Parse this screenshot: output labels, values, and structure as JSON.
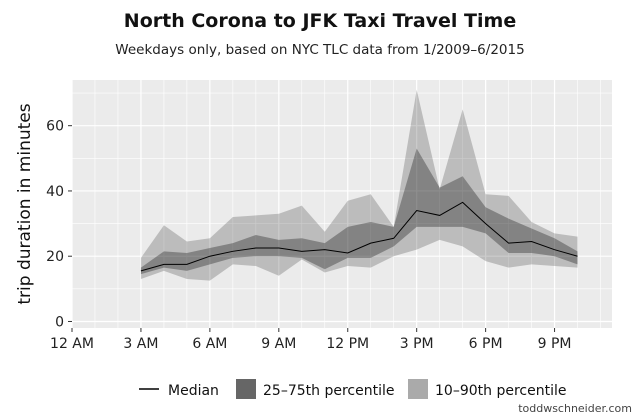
{
  "chart_data": {
    "type": "area",
    "title": "North Corona to JFK Taxi Travel Time",
    "subtitle": "Weekdays only, based on NYC TLC data from 1/2009–6/2015",
    "ylabel": "trip duration in minutes",
    "xlabel": "",
    "x_ticks": [
      {
        "hour": 0,
        "label": "12 AM"
      },
      {
        "hour": 3,
        "label": "3 AM"
      },
      {
        "hour": 6,
        "label": "6 AM"
      },
      {
        "hour": 9,
        "label": "9 AM"
      },
      {
        "hour": 12,
        "label": "12 PM"
      },
      {
        "hour": 15,
        "label": "3 PM"
      },
      {
        "hour": 18,
        "label": "6 PM"
      },
      {
        "hour": 21,
        "label": "9 PM"
      }
    ],
    "y_ticks": [
      0,
      20,
      40,
      60
    ],
    "xlim": [
      0,
      23.5
    ],
    "ylim": [
      -2,
      74
    ],
    "grid": true,
    "legend_position": "bottom",
    "x": [
      3,
      4,
      5,
      6,
      7,
      8,
      9,
      10,
      11,
      12,
      13,
      14,
      15,
      16,
      17,
      18,
      19,
      20,
      21,
      22
    ],
    "series": [
      {
        "name": "Median",
        "kind": "line",
        "color": "#000000",
        "values": [
          15.5,
          17.5,
          17.5,
          20,
          21.5,
          22.5,
          22.5,
          21.5,
          22,
          21,
          24,
          25.5,
          34,
          32.5,
          36.5,
          30,
          24,
          24.5,
          22,
          20
        ]
      },
      {
        "name": "25–75th percentile",
        "kind": "band",
        "color": "#666666",
        "lower": [
          14.5,
          16.5,
          15.5,
          17.5,
          19.5,
          20,
          20,
          19.5,
          16,
          19.5,
          19.5,
          23,
          29,
          29,
          29,
          27,
          21,
          21,
          20,
          17.5
        ],
        "upper": [
          16.5,
          21.5,
          21,
          22.5,
          24,
          26.5,
          25,
          25.5,
          24,
          29,
          30.5,
          29,
          53,
          41,
          44.5,
          35,
          31.5,
          28.5,
          25.5,
          21.5
        ]
      },
      {
        "name": "10–90th percentile",
        "kind": "band",
        "color": "#aaaaaa",
        "lower": [
          13,
          15.5,
          13,
          12.5,
          17.5,
          17,
          14,
          19,
          15,
          17,
          16.5,
          20,
          22,
          25,
          23,
          18.5,
          16.5,
          17.5,
          17,
          16.5
        ],
        "upper": [
          19.5,
          29.5,
          24.5,
          25.5,
          32,
          32.5,
          33,
          35.5,
          27.5,
          37,
          39,
          29,
          71,
          40.5,
          65,
          39,
          38.5,
          30.5,
          27,
          26
        ]
      }
    ]
  },
  "legend": {
    "median": "Median",
    "iqr": "25–75th percentile",
    "p1090": "10–90th percentile"
  },
  "credit": "toddwschneider.com"
}
